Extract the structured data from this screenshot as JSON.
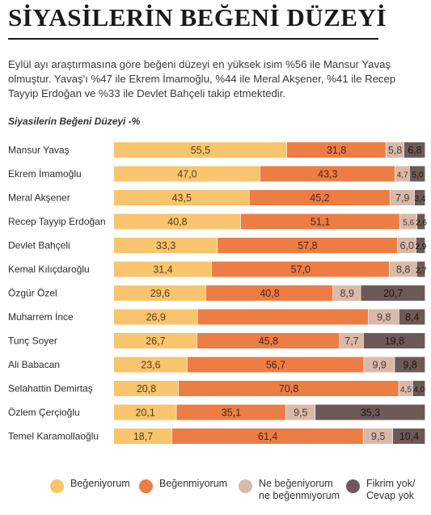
{
  "title": "SİYASİLERİN BEĞENİ DÜZEYİ",
  "intro": "Eylül ayı araştırmasına göre beğeni düzeyi en yüksek isim %56 ile Mansur Yavaş olmuştur. Yavaş'ı %47 ile Ekrem İmamoğlu, %44 ile Meral Akşener, %41 ile Recep Tayyip Erdoğan ve %33 ile Devlet Bahçeli takip etmektedir.",
  "subtitle": "Siyasilerin Beğeni Düzeyi -%",
  "colors": {
    "begeniyorum": "#f8c56e",
    "begenmiyorum": "#ec7d45",
    "ne_begeniyorum": "#d9b9a9",
    "fikrim_yok": "#6d5a58"
  },
  "chart_data": {
    "type": "bar",
    "stacked": true,
    "orientation": "horizontal",
    "title": "Siyasilerin Beğeni Düzeyi -%",
    "xlim": [
      0,
      100
    ],
    "grid": false,
    "legend_position": "bottom",
    "categories": [
      "Mansur Yavaş",
      "Ekrem İmamoğlu",
      "Meral Akşener",
      "Recep Tayyip Erdoğan",
      "Devlet Bahçeli",
      "Kemal Kılıçdaroğlu",
      "Özgür Özel",
      "Muharrem İnce",
      "Tunç Soyer",
      "Ali Babacan",
      "Selahattin Demirtaş",
      "Özlem Çerçioğlu",
      "Temel Karamollaoğlu"
    ],
    "series": [
      {
        "name": "Beğeniyorum",
        "color": "#f8c56e",
        "values": [
          55.5,
          47.0,
          43.5,
          40.8,
          33.3,
          31.4,
          29.6,
          26.9,
          26.7,
          23.6,
          20.8,
          20.1,
          18.7
        ]
      },
      {
        "name": "Beğenmiyorum",
        "color": "#ec7d45",
        "values": [
          31.8,
          43.3,
          45.2,
          51.1,
          57.8,
          57.0,
          40.8,
          null,
          45.8,
          56.7,
          70.8,
          35.1,
          61.4
        ]
      },
      {
        "name": "Ne beğeniyorum ne beğenmiyorum",
        "color": "#d9b9a9",
        "values": [
          5.8,
          4.7,
          7.9,
          5.6,
          6.0,
          8.8,
          8.9,
          9.8,
          7.7,
          9.9,
          4.5,
          9.5,
          9.5
        ]
      },
      {
        "name": "Fikrim yok/ Cevap yok",
        "color": "#6d5a58",
        "values": [
          6.8,
          5.0,
          3.4,
          2.6,
          2.9,
          2.7,
          20.7,
          8.4,
          19.8,
          9.8,
          4.0,
          35.3,
          10.4
        ]
      }
    ]
  },
  "legend": [
    {
      "label": "Beğeniyorum",
      "color": "#f8c56e"
    },
    {
      "label": "Beğenmiyorum",
      "color": "#ec7d45"
    },
    {
      "label": "Ne beğeniyorum\nne beğenmiyorum",
      "color": "#d9b9a9"
    },
    {
      "label": "Fikrim yok/\nCevap yok",
      "color": "#6d5a58"
    }
  ]
}
